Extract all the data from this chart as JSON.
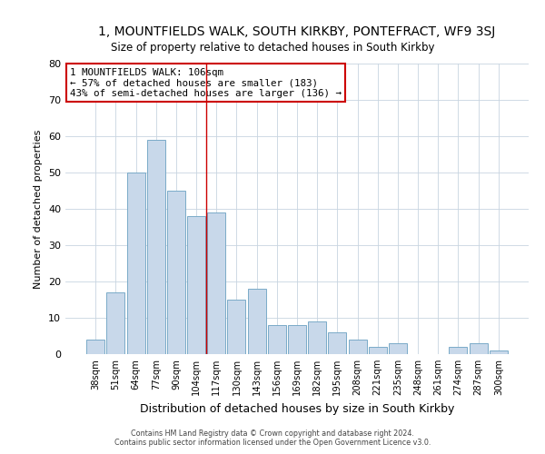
{
  "title": "1, MOUNTFIELDS WALK, SOUTH KIRKBY, PONTEFRACT, WF9 3SJ",
  "subtitle": "Size of property relative to detached houses in South Kirkby",
  "xlabel": "Distribution of detached houses by size in South Kirkby",
  "ylabel": "Number of detached properties",
  "bar_labels": [
    "38sqm",
    "51sqm",
    "64sqm",
    "77sqm",
    "90sqm",
    "104sqm",
    "117sqm",
    "130sqm",
    "143sqm",
    "156sqm",
    "169sqm",
    "182sqm",
    "195sqm",
    "208sqm",
    "221sqm",
    "235sqm",
    "248sqm",
    "261sqm",
    "274sqm",
    "287sqm",
    "300sqm"
  ],
  "bar_values": [
    4,
    17,
    50,
    59,
    45,
    38,
    39,
    15,
    18,
    8,
    8,
    9,
    6,
    4,
    2,
    3,
    0,
    0,
    2,
    3,
    1
  ],
  "bar_color": "#c8d8ea",
  "bar_edge_color": "#7aaac8",
  "ylim": [
    0,
    80
  ],
  "yticks": [
    0,
    10,
    20,
    30,
    40,
    50,
    60,
    70,
    80
  ],
  "vline_x": 5.5,
  "vline_color": "#cc0000",
  "annotation_title": "1 MOUNTFIELDS WALK: 106sqm",
  "annotation_line1": "← 57% of detached houses are smaller (183)",
  "annotation_line2": "43% of semi-detached houses are larger (136) →",
  "annotation_box_color": "#cc0000",
  "footer_line1": "Contains HM Land Registry data © Crown copyright and database right 2024.",
  "footer_line2": "Contains public sector information licensed under the Open Government Licence v3.0.",
  "background_color": "#ffffff",
  "grid_color": "#c8d4e0"
}
